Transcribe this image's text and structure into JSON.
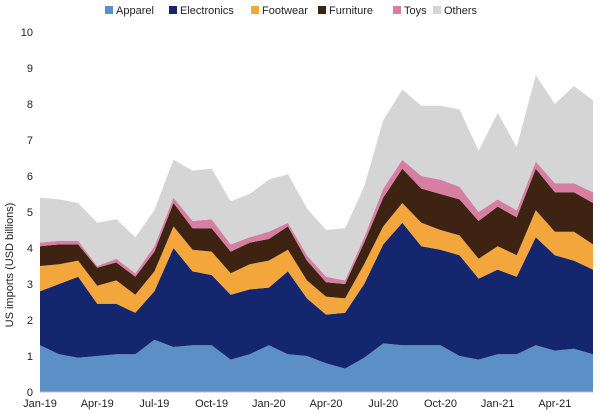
{
  "chart_data": {
    "type": "area",
    "stacked": true,
    "title": "",
    "xlabel": "",
    "ylabel": "US imports (USD billions)",
    "ylim": [
      0,
      10
    ],
    "yticks": [
      "0",
      "1",
      "2",
      "3",
      "4",
      "5",
      "6",
      "7",
      "8",
      "9",
      "10"
    ],
    "grid": false,
    "legend_position": "top",
    "x": [
      "2019-01",
      "2019-02",
      "2019-03",
      "2019-04",
      "2019-05",
      "2019-06",
      "2019-07",
      "2019-08",
      "2019-09",
      "2019-10",
      "2019-11",
      "2019-12",
      "2020-01",
      "2020-02",
      "2020-03",
      "2020-04",
      "2020-05",
      "2020-06",
      "2020-07",
      "2020-08",
      "2020-09",
      "2020-10",
      "2020-11",
      "2020-12",
      "2021-01",
      "2021-02",
      "2021-03",
      "2021-04",
      "2021-05",
      "2021-06"
    ],
    "xtick_labels": [
      "Jan-19",
      "Apr-19",
      "Jul-19",
      "Oct-19",
      "Jan-20",
      "Apr-20",
      "Jul-20",
      "Oct-20",
      "Jan-21",
      "Apr-21"
    ],
    "series": [
      {
        "name": "Apparel",
        "color": "#5b8fc6",
        "values": [
          1.3,
          1.05,
          0.95,
          1.0,
          1.05,
          1.05,
          1.45,
          1.25,
          1.3,
          1.3,
          0.9,
          1.05,
          1.3,
          1.05,
          1.0,
          0.8,
          0.65,
          0.95,
          1.35,
          1.3,
          1.3,
          1.3,
          1.0,
          0.9,
          1.05,
          1.05,
          1.3,
          1.15,
          1.2,
          1.05
        ]
      },
      {
        "name": "Electronics",
        "color": "#14266e",
        "values": [
          1.5,
          1.95,
          2.25,
          1.45,
          1.4,
          1.15,
          1.35,
          2.75,
          2.05,
          1.95,
          1.8,
          1.8,
          1.6,
          2.3,
          1.6,
          1.35,
          1.55,
          2.05,
          2.75,
          3.4,
          2.75,
          2.65,
          2.8,
          2.25,
          2.35,
          2.15,
          3.0,
          2.65,
          2.45,
          2.35
        ]
      },
      {
        "name": "Footwear",
        "color": "#f2a63b",
        "values": [
          0.7,
          0.55,
          0.45,
          0.5,
          0.65,
          0.5,
          0.55,
          0.6,
          0.6,
          0.65,
          0.6,
          0.7,
          0.75,
          0.6,
          0.5,
          0.5,
          0.4,
          0.55,
          0.5,
          0.55,
          0.65,
          0.55,
          0.55,
          0.55,
          0.65,
          0.6,
          0.75,
          0.65,
          0.8,
          0.7
        ]
      },
      {
        "name": "Furniture",
        "color": "#3e2212",
        "values": [
          0.55,
          0.55,
          0.45,
          0.5,
          0.5,
          0.5,
          0.55,
          0.65,
          0.6,
          0.65,
          0.6,
          0.6,
          0.6,
          0.65,
          0.55,
          0.4,
          0.4,
          0.6,
          0.8,
          0.95,
          0.95,
          1.0,
          1.0,
          1.05,
          1.1,
          1.05,
          1.15,
          1.1,
          1.1,
          1.15
        ]
      },
      {
        "name": "Toys",
        "color": "#d77ea3",
        "values": [
          0.1,
          0.1,
          0.1,
          0.05,
          0.1,
          0.1,
          0.15,
          0.15,
          0.2,
          0.25,
          0.2,
          0.15,
          0.2,
          0.1,
          0.15,
          0.15,
          0.1,
          0.15,
          0.25,
          0.25,
          0.35,
          0.4,
          0.35,
          0.25,
          0.2,
          0.2,
          0.2,
          0.25,
          0.25,
          0.3
        ]
      },
      {
        "name": "Others",
        "color": "#d5d5d5",
        "values": [
          1.25,
          1.15,
          1.05,
          1.2,
          1.1,
          1.0,
          1.0,
          1.05,
          1.4,
          1.4,
          1.2,
          1.2,
          1.45,
          1.35,
          1.3,
          1.3,
          1.45,
          1.4,
          1.9,
          1.95,
          1.95,
          2.05,
          2.15,
          1.7,
          2.4,
          1.75,
          2.4,
          2.2,
          2.7,
          2.55
        ]
      }
    ]
  }
}
